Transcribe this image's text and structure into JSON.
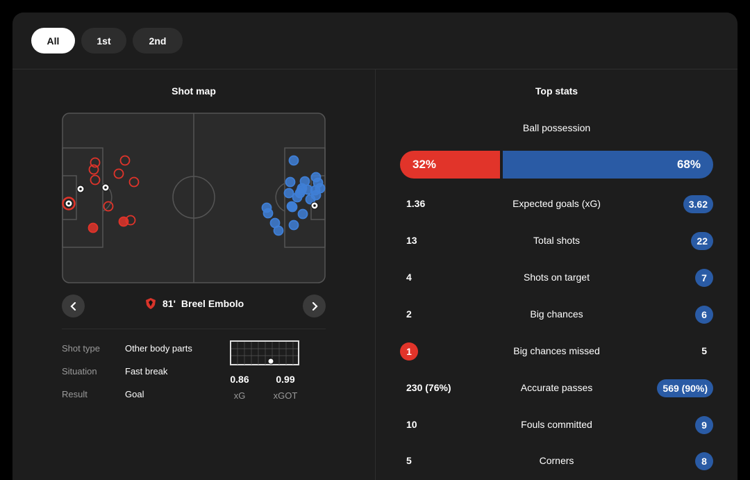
{
  "tabs": [
    {
      "label": "All",
      "active": true
    },
    {
      "label": "1st",
      "active": false
    },
    {
      "label": "2nd",
      "active": false
    }
  ],
  "shot_map": {
    "title": "Shot map",
    "colors": {
      "home": "#e1342a",
      "away": "#3f7fd6",
      "goal": "#ffffff"
    },
    "selected_shot": {
      "minute": "81'",
      "player": "Breel Embolo"
    },
    "details": [
      {
        "label": "Shot type",
        "value": "Other body parts"
      },
      {
        "label": "Situation",
        "value": "Fast break"
      },
      {
        "label": "Result",
        "value": "Goal"
      }
    ],
    "xg": {
      "value": "0.86",
      "label": "xG"
    },
    "xgot": {
      "value": "0.99",
      "label": "xGOT"
    }
  },
  "top_stats": {
    "title": "Top stats",
    "possession": {
      "label": "Ball possession",
      "home": "32%",
      "away": "68%",
      "home_share": 0.32
    },
    "rows": [
      {
        "label": "Expected goals (xG)",
        "home": "1.36",
        "away": "3.62",
        "highlight": "away"
      },
      {
        "label": "Total shots",
        "home": "13",
        "away": "22",
        "highlight": "away"
      },
      {
        "label": "Shots on target",
        "home": "4",
        "away": "7",
        "highlight": "away"
      },
      {
        "label": "Big chances",
        "home": "2",
        "away": "6",
        "highlight": "away"
      },
      {
        "label": "Big chances missed",
        "home": "1",
        "away": "5",
        "highlight": "home"
      },
      {
        "label": "Accurate passes",
        "home": "230 (76%)",
        "away": "569 (90%)",
        "highlight": "away"
      },
      {
        "label": "Fouls committed",
        "home": "10",
        "away": "9",
        "highlight": "away"
      },
      {
        "label": "Corners",
        "home": "5",
        "away": "8",
        "highlight": "away"
      }
    ]
  }
}
